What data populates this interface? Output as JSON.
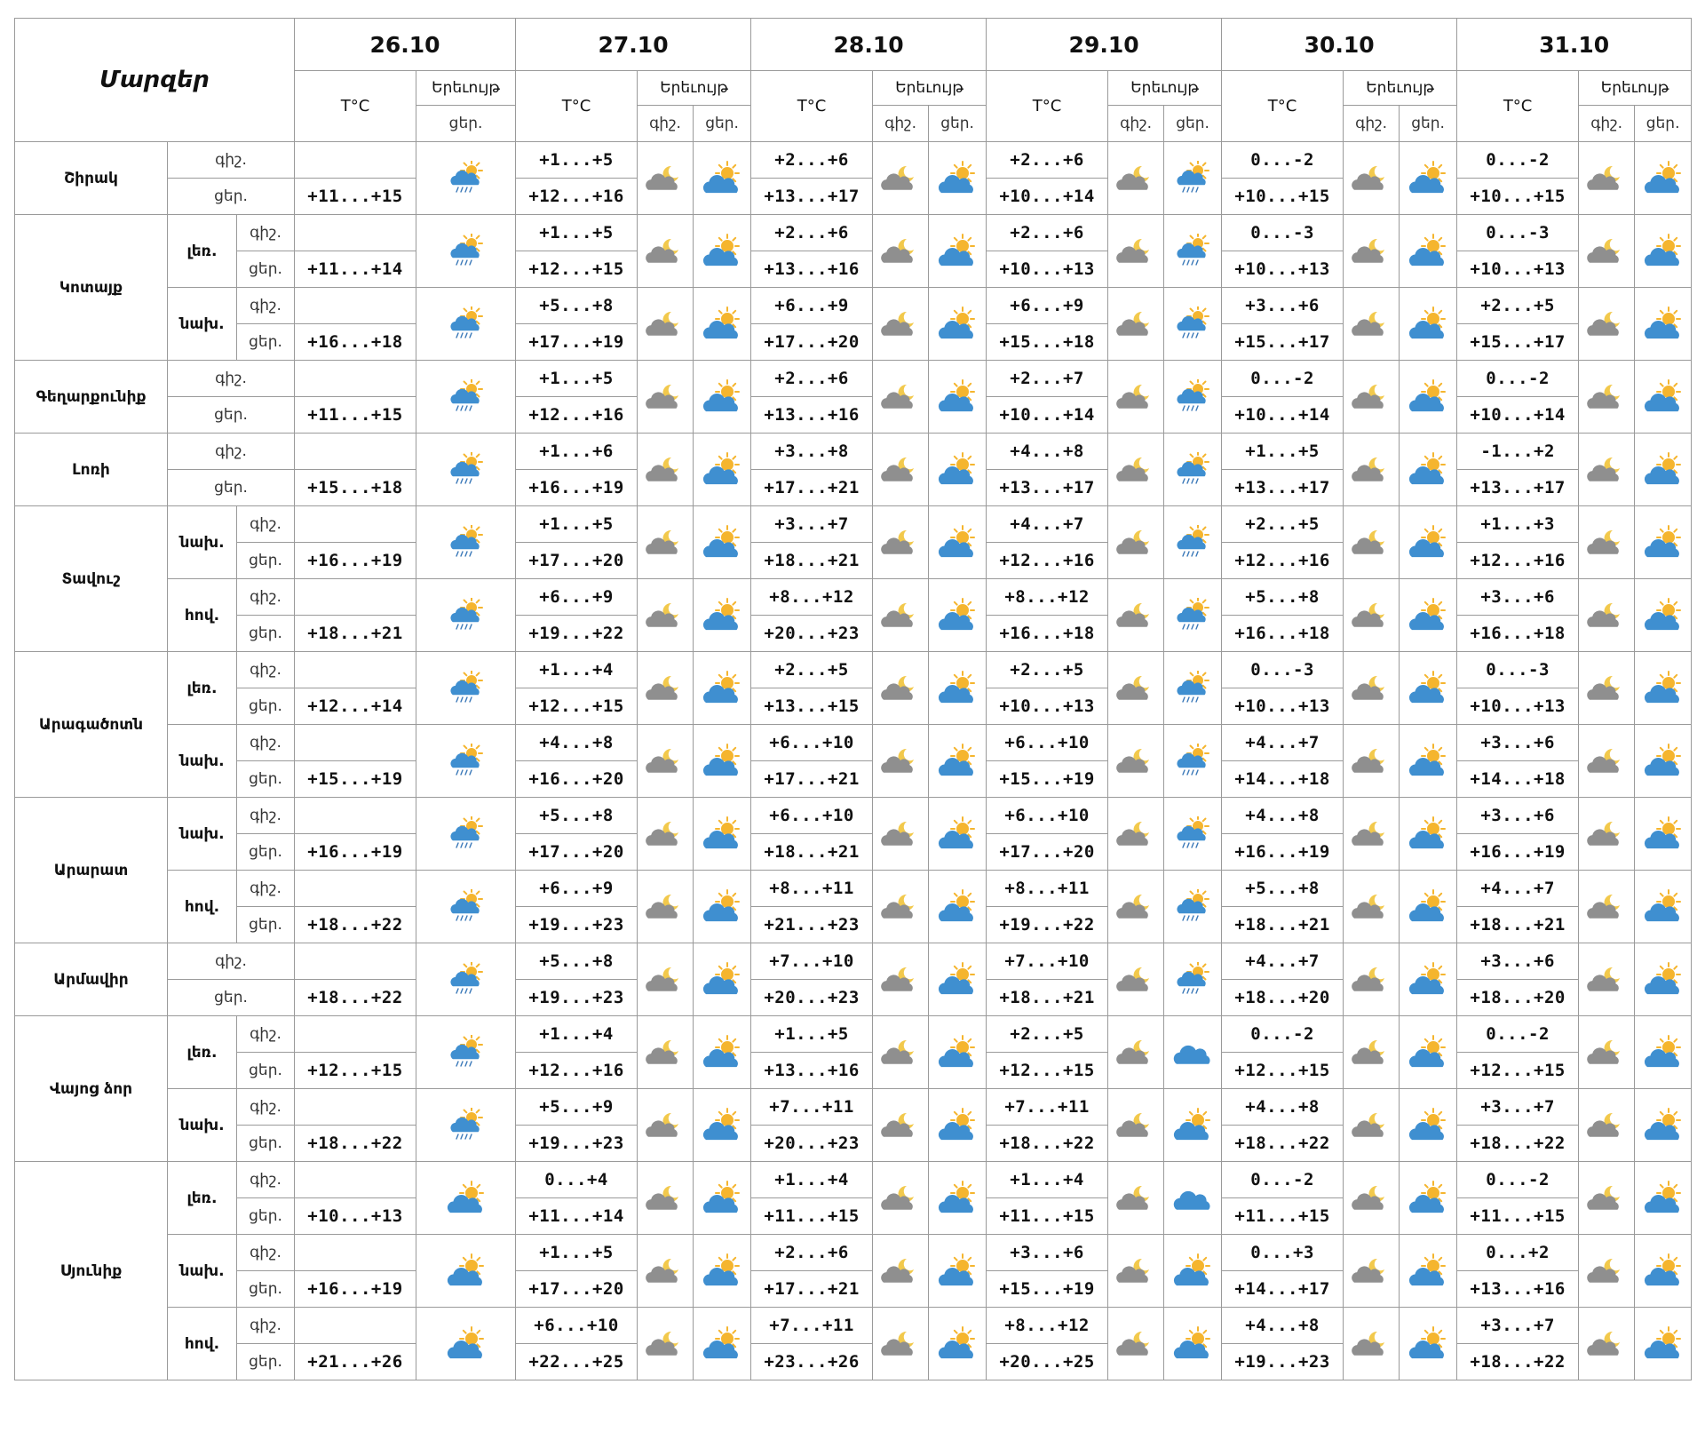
{
  "header": {
    "regions_title": "Մարզեր",
    "dates": [
      "26.10",
      "27.10",
      "28.10",
      "29.10",
      "30.10",
      "31.10"
    ],
    "temp_label": "T°C",
    "phenomenon_label": "Երեւույթ",
    "night_label": "գիշ.",
    "day_label": "ցեր."
  },
  "rows": [
    {
      "region": "Շիրակ",
      "sub": "",
      "night": [
        "",
        "+1...+5",
        "+2...+6",
        "+2...+6",
        "0...-2",
        "0...-2"
      ],
      "day": [
        "+11...+15",
        "+12...+16",
        "+13...+17",
        "+10...+14",
        "+10...+15",
        "+10...+15"
      ]
    },
    {
      "region": "Կոտայք",
      "sub": "լեռ.",
      "night": [
        "",
        "+1...+5",
        "+2...+6",
        "+2...+6",
        "0...-3",
        "0...-3"
      ],
      "day": [
        "+11...+14",
        "+12...+15",
        "+13...+16",
        "+10...+13",
        "+10...+13",
        "+10...+13"
      ]
    },
    {
      "region": "Կոտայք",
      "sub": "նախ.",
      "night": [
        "",
        "+5...+8",
        "+6...+9",
        "+6...+9",
        "+3...+6",
        "+2...+5"
      ],
      "day": [
        "+16...+18",
        "+17...+19",
        "+17...+20",
        "+15...+18",
        "+15...+17",
        "+15...+17"
      ]
    },
    {
      "region": "Գեղարքունիք",
      "sub": "",
      "night": [
        "",
        "+1...+5",
        "+2...+6",
        "+2...+7",
        "0...-2",
        "0...-2"
      ],
      "day": [
        "+11...+15",
        "+12...+16",
        "+13...+16",
        "+10...+14",
        "+10...+14",
        "+10...+14"
      ]
    },
    {
      "region": "Լոռի",
      "sub": "",
      "night": [
        "",
        "+1...+6",
        "+3...+8",
        "+4...+8",
        "+1...+5",
        "-1...+2"
      ],
      "day": [
        "+15...+18",
        "+16...+19",
        "+17...+21",
        "+13...+17",
        "+13...+17",
        "+13...+17"
      ]
    },
    {
      "region": "Տավուշ",
      "sub": "նախ.",
      "night": [
        "",
        "+1...+5",
        "+3...+7",
        "+4...+7",
        "+2...+5",
        "+1...+3"
      ],
      "day": [
        "+16...+19",
        "+17...+20",
        "+18...+21",
        "+12...+16",
        "+12...+16",
        "+12...+16"
      ]
    },
    {
      "region": "Տավուշ",
      "sub": "հով.",
      "night": [
        "",
        "+6...+9",
        "+8...+12",
        "+8...+12",
        "+5...+8",
        "+3...+6"
      ],
      "day": [
        "+18...+21",
        "+19...+22",
        "+20...+23",
        "+16...+18",
        "+16...+18",
        "+16...+18"
      ]
    },
    {
      "region": "Արագածոտն",
      "sub": "լեռ.",
      "night": [
        "",
        "+1...+4",
        "+2...+5",
        "+2...+5",
        "0...-3",
        "0...-3"
      ],
      "day": [
        "+12...+14",
        "+12...+15",
        "+13...+15",
        "+10...+13",
        "+10...+13",
        "+10...+13"
      ]
    },
    {
      "region": "Արագածոտն",
      "sub": "նախ.",
      "night": [
        "",
        "+4...+8",
        "+6...+10",
        "+6...+10",
        "+4...+7",
        "+3...+6"
      ],
      "day": [
        "+15...+19",
        "+16...+20",
        "+17...+21",
        "+15...+19",
        "+14...+18",
        "+14...+18"
      ]
    },
    {
      "region": "Արարատ",
      "sub": "նախ.",
      "night": [
        "",
        "+5...+8",
        "+6...+10",
        "+6...+10",
        "+4...+8",
        "+3...+6"
      ],
      "day": [
        "+16...+19",
        "+17...+20",
        "+18...+21",
        "+17...+20",
        "+16...+19",
        "+16...+19"
      ]
    },
    {
      "region": "Արարատ",
      "sub": "հով.",
      "night": [
        "",
        "+6...+9",
        "+8...+11",
        "+8...+11",
        "+5...+8",
        "+4...+7"
      ],
      "day": [
        "+18...+22",
        "+19...+23",
        "+21...+23",
        "+19...+22",
        "+18...+21",
        "+18...+21"
      ]
    },
    {
      "region": "Արմավիր",
      "sub": "",
      "night": [
        "",
        "+5...+8",
        "+7...+10",
        "+7...+10",
        "+4...+7",
        "+3...+6"
      ],
      "day": [
        "+18...+22",
        "+19...+23",
        "+20...+23",
        "+18...+21",
        "+18...+20",
        "+18...+20"
      ]
    },
    {
      "region": "Վայոց ձոր",
      "sub": "լեռ.",
      "night": [
        "",
        "+1...+4",
        "+1...+5",
        "+2...+5",
        "0...-2",
        "0...-2"
      ],
      "day": [
        "+12...+15",
        "+12...+16",
        "+13...+16",
        "+12...+15",
        "+12...+15",
        "+12...+15"
      ]
    },
    {
      "region": "Վայոց ձոր",
      "sub": "նախ.",
      "night": [
        "",
        "+5...+9",
        "+7...+11",
        "+7...+11",
        "+4...+8",
        "+3...+7"
      ],
      "day": [
        "+18...+22",
        "+19...+23",
        "+20...+23",
        "+18...+22",
        "+18...+22",
        "+18...+22"
      ]
    },
    {
      "region": "Սյունիք",
      "sub": "լեռ.",
      "night": [
        "",
        "0...+4",
        "+1...+4",
        "+1...+4",
        "0...-2",
        "0...-2"
      ],
      "day": [
        "+10...+13",
        "+11...+14",
        "+11...+15",
        "+11...+15",
        "+11...+15",
        "+11...+15"
      ]
    },
    {
      "region": "Սյունիք",
      "sub": "նախ.",
      "night": [
        "",
        "+1...+5",
        "+2...+6",
        "+3...+6",
        "0...+3",
        "0...+2"
      ],
      "day": [
        "+16...+19",
        "+17...+20",
        "+17...+21",
        "+15...+19",
        "+14...+17",
        "+13...+16"
      ]
    },
    {
      "region": "Սյունիք",
      "sub": "հով.",
      "night": [
        "",
        "+6...+10",
        "+7...+11",
        "+8...+12",
        "+4...+8",
        "+3...+7"
      ],
      "day": [
        "+21...+26",
        "+22...+25",
        "+23...+26",
        "+20...+25",
        "+19...+23",
        "+18...+22"
      ]
    }
  ],
  "icons": {
    "day1": [
      "rain-sun-icon",
      "rain-sun-icon",
      "rain-sun-icon",
      "rain-sun-icon",
      "rain-sun-icon",
      "rain-sun-icon",
      "rain-sun-icon",
      "rain-sun-icon",
      "rain-sun-icon",
      "rain-sun-icon",
      "rain-sun-icon",
      "rain-sun-icon",
      "rain-sun-icon",
      "rain-sun-icon",
      "cloud-sun-icon",
      "cloud-sun-icon",
      "cloud-sun-icon"
    ],
    "day3_night": "moon-cloud-icon",
    "day3_day": [
      "rain-sun-icon",
      "rain-sun-icon",
      "rain-sun-icon",
      "rain-sun-icon",
      "rain-sun-icon",
      "rain-sun-icon",
      "rain-sun-icon",
      "rain-sun-icon",
      "rain-sun-icon",
      "rain-sun-icon",
      "rain-sun-icon",
      "rain-sun-icon",
      "cloud-icon",
      "cloud-sun-icon",
      "cloud-icon",
      "cloud-sun-icon",
      "cloud-sun-icon"
    ],
    "default_night": "moon-cloud-icon",
    "default_day": "cloud-sun-icon"
  },
  "colors": {
    "border": "#9a9a9a",
    "cloud_gray": "#8f8f8f",
    "cloud_blue": "#3f8fd0",
    "sun": "#f5b52e",
    "moon": "#f2c94c",
    "rain": "#3a78b8"
  }
}
